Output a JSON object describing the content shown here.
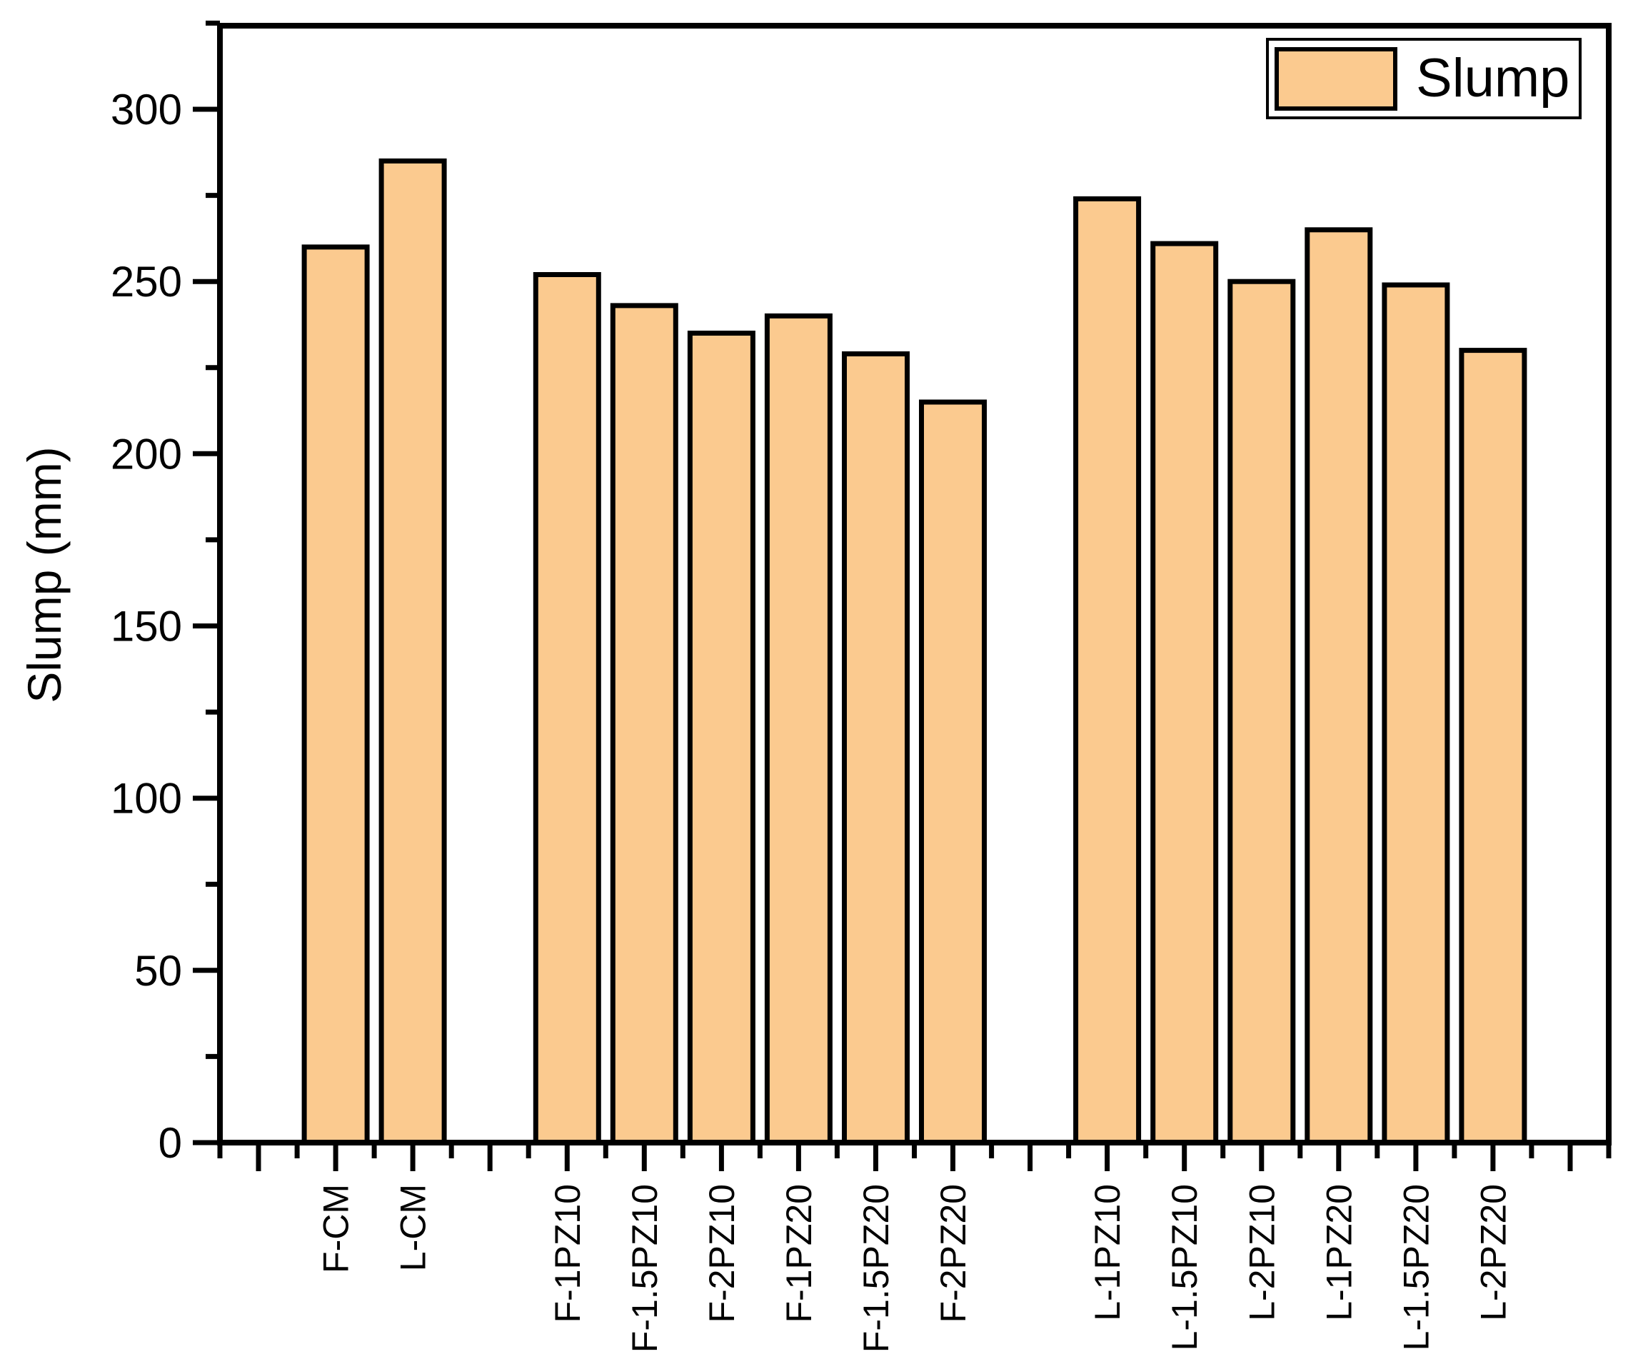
{
  "chart_data": {
    "type": "bar",
    "title": "",
    "xlabel": "",
    "ylabel": "Slump (mm)",
    "legend_label": "Slump",
    "legend_position": "top-right",
    "grid": false,
    "bar_color": "#FBCA8F",
    "bar_border_color": "#000000",
    "ylim": [
      0,
      325
    ],
    "yticks_major": [
      0,
      50,
      100,
      150,
      200,
      250,
      300
    ],
    "yticks_minor": [
      25,
      75,
      125,
      175,
      225,
      275,
      325
    ],
    "slots": [
      "",
      "F-CM",
      "L-CM",
      "",
      "F-1PZ10",
      "F-1.5PZ10",
      "F-2PZ10",
      "F-1PZ20",
      "F-1.5PZ20",
      "F-2PZ20",
      "",
      "L-1PZ10",
      "L-1.5PZ10",
      "L-2PZ10",
      "L-1PZ20",
      "L-1.5PZ20",
      "L-2PZ20",
      ""
    ],
    "categories": [
      "F-CM",
      "L-CM",
      "F-1PZ10",
      "F-1.5PZ10",
      "F-2PZ10",
      "F-1PZ20",
      "F-1.5PZ20",
      "F-2PZ20",
      "L-1PZ10",
      "L-1.5PZ10",
      "L-2PZ10",
      "L-1PZ20",
      "L-1.5PZ20",
      "L-2PZ20"
    ],
    "values": [
      260,
      285,
      252,
      243,
      235,
      240,
      229,
      215,
      274,
      261,
      250,
      265,
      249,
      230
    ],
    "series": [
      {
        "name": "Slump",
        "values": [
          260,
          285,
          252,
          243,
          235,
          240,
          229,
          215,
          274,
          261,
          250,
          265,
          249,
          230
        ]
      }
    ]
  },
  "y_axis": {
    "title": "Slump (mm)"
  },
  "legend": {
    "label": "Slump"
  }
}
